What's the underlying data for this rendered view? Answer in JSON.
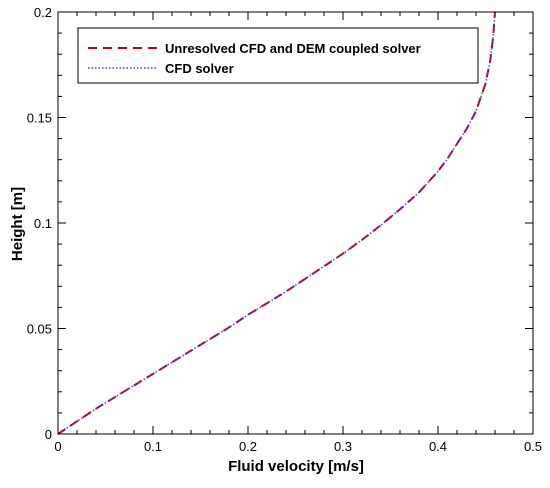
{
  "chart_data": {
    "type": "line",
    "title": "",
    "xlabel": "Fluid velocity [m/s]",
    "ylabel": "Height [m]",
    "xlim": [
      0,
      0.5
    ],
    "ylim": [
      0,
      0.2
    ],
    "xticks": [
      0,
      0.1,
      0.2,
      0.3,
      0.4,
      0.5
    ],
    "xtick_labels": [
      "0",
      "0.1",
      "0.2",
      "0.3",
      "0.4",
      "0.5"
    ],
    "yticks": [
      0,
      0.05,
      0.1,
      0.15,
      0.2
    ],
    "ytick_labels": [
      "0",
      "0.05",
      "0.1",
      "0.15",
      "0.2"
    ],
    "grid": false,
    "legend_position": "top",
    "series": [
      {
        "name": "Unresolved CFD and DEM coupled solver",
        "style": "dashed",
        "color": "#c00000",
        "x": [
          0,
          0.02,
          0.04,
          0.06,
          0.08,
          0.1,
          0.12,
          0.14,
          0.16,
          0.18,
          0.2,
          0.22,
          0.24,
          0.26,
          0.28,
          0.3,
          0.32,
          0.34,
          0.36,
          0.38,
          0.4,
          0.41,
          0.42,
          0.43,
          0.44,
          0.45,
          0.455,
          0.458,
          0.46
        ],
        "y": [
          0,
          0.006,
          0.012,
          0.0175,
          0.023,
          0.0285,
          0.034,
          0.0395,
          0.045,
          0.0505,
          0.0565,
          0.062,
          0.0675,
          0.0735,
          0.0795,
          0.0855,
          0.092,
          0.099,
          0.1065,
          0.1145,
          0.1245,
          0.1305,
          0.1375,
          0.1445,
          0.153,
          0.166,
          0.177,
          0.188,
          0.2
        ]
      },
      {
        "name": "CFD solver",
        "style": "dotted",
        "color": "#4040ff",
        "x": [
          0,
          0.02,
          0.04,
          0.06,
          0.08,
          0.1,
          0.12,
          0.14,
          0.16,
          0.18,
          0.2,
          0.22,
          0.24,
          0.26,
          0.28,
          0.3,
          0.32,
          0.34,
          0.36,
          0.38,
          0.4,
          0.41,
          0.42,
          0.43,
          0.44,
          0.45,
          0.455,
          0.458,
          0.46
        ],
        "y": [
          0,
          0.006,
          0.012,
          0.0175,
          0.023,
          0.0285,
          0.034,
          0.0395,
          0.045,
          0.0505,
          0.0565,
          0.062,
          0.0675,
          0.0735,
          0.0795,
          0.0855,
          0.092,
          0.099,
          0.1065,
          0.1145,
          0.1245,
          0.1305,
          0.1375,
          0.1445,
          0.153,
          0.166,
          0.177,
          0.188,
          0.2
        ]
      }
    ]
  }
}
